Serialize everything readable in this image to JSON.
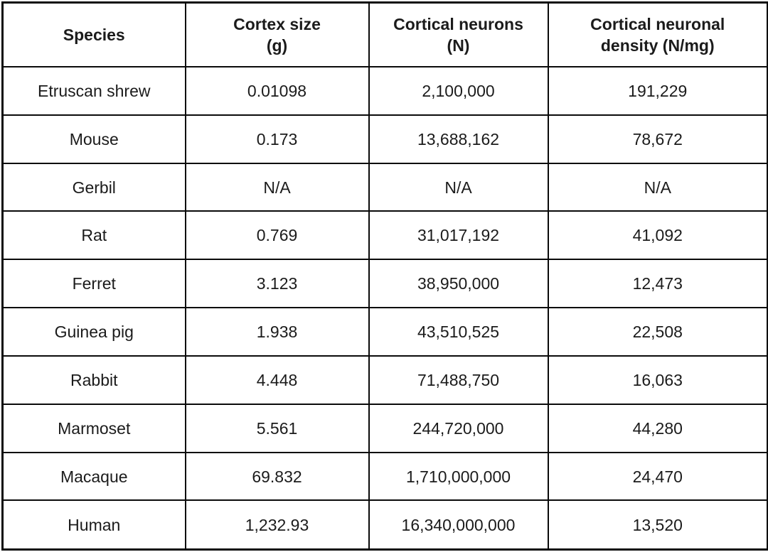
{
  "table": {
    "headers": [
      "Species",
      "Cortex size\n(g)",
      "Cortical neurons\n(N)",
      "Cortical neuronal\ndensity (N/mg)"
    ],
    "rows": [
      [
        "Etruscan shrew",
        "0.01098",
        "2,100,000",
        "191,229"
      ],
      [
        "Mouse",
        "0.173",
        "13,688,162",
        "78,672"
      ],
      [
        "Gerbil",
        "N/A",
        "N/A",
        "N/A"
      ],
      [
        "Rat",
        "0.769",
        "31,017,192",
        "41,092"
      ],
      [
        "Ferret",
        "3.123",
        "38,950,000",
        "12,473"
      ],
      [
        "Guinea pig",
        "1.938",
        "43,510,525",
        "22,508"
      ],
      [
        "Rabbit",
        "4.448",
        "71,488,750",
        "16,063"
      ],
      [
        "Marmoset",
        "5.561",
        "244,720,000",
        "44,280"
      ],
      [
        "Macaque",
        "69.832",
        "1,710,000,000",
        "24,470"
      ],
      [
        "Human",
        "1,232.93",
        "16,340,000,000",
        "13,520"
      ]
    ]
  },
  "chart_data": {
    "type": "table",
    "title": "",
    "columns": [
      "Species",
      "Cortex size (g)",
      "Cortical neurons (N)",
      "Cortical neuronal density (N/mg)"
    ],
    "rows": [
      {
        "species": "Etruscan shrew",
        "cortex_size_g": 0.01098,
        "cortical_neurons": 2100000,
        "cortical_neuronal_density_n_per_mg": 191229
      },
      {
        "species": "Mouse",
        "cortex_size_g": 0.173,
        "cortical_neurons": 13688162,
        "cortical_neuronal_density_n_per_mg": 78672
      },
      {
        "species": "Gerbil",
        "cortex_size_g": null,
        "cortical_neurons": null,
        "cortical_neuronal_density_n_per_mg": null
      },
      {
        "species": "Rat",
        "cortex_size_g": 0.769,
        "cortical_neurons": 31017192,
        "cortical_neuronal_density_n_per_mg": 41092
      },
      {
        "species": "Ferret",
        "cortex_size_g": 3.123,
        "cortical_neurons": 38950000,
        "cortical_neuronal_density_n_per_mg": 12473
      },
      {
        "species": "Guinea pig",
        "cortex_size_g": 1.938,
        "cortical_neurons": 43510525,
        "cortical_neuronal_density_n_per_mg": 22508
      },
      {
        "species": "Rabbit",
        "cortex_size_g": 4.448,
        "cortical_neurons": 71488750,
        "cortical_neuronal_density_n_per_mg": 16063
      },
      {
        "species": "Marmoset",
        "cortex_size_g": 5.561,
        "cortical_neurons": 244720000,
        "cortical_neuronal_density_n_per_mg": 44280
      },
      {
        "species": "Macaque",
        "cortex_size_g": 69.832,
        "cortical_neurons": 1710000000,
        "cortical_neuronal_density_n_per_mg": 24470
      },
      {
        "species": "Human",
        "cortex_size_g": 1232.93,
        "cortical_neurons": 16340000000,
        "cortical_neuronal_density_n_per_mg": 13520
      }
    ],
    "missing_value_marker": "N/A",
    "layout_hints": {
      "grid": "full-borders",
      "header_bold": true,
      "text_align": "center"
    }
  }
}
